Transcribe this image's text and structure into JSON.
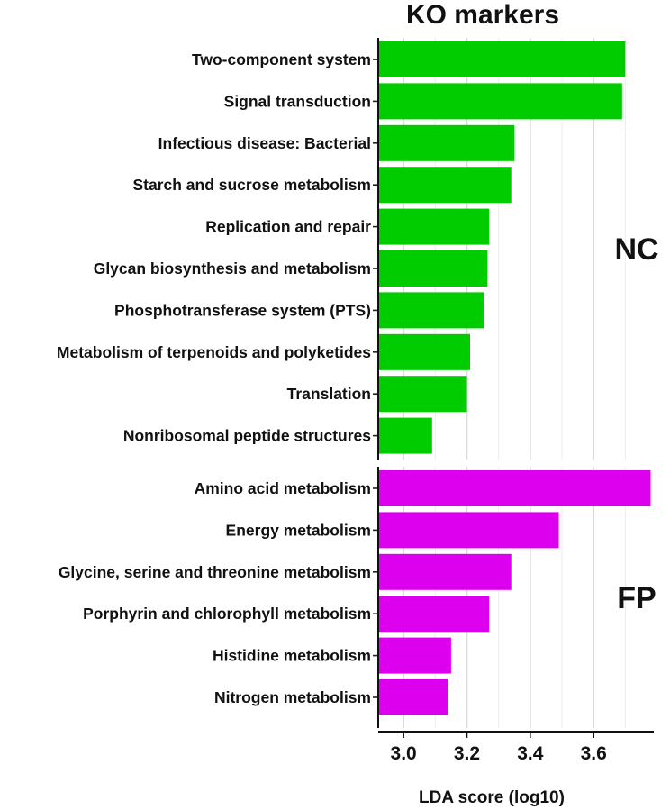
{
  "chart_data": {
    "type": "bar",
    "orientation": "horizontal",
    "title": "KO markers",
    "xlabel": "LDA score (log10)",
    "xlim": [
      2.92,
      3.79
    ],
    "x_ticks": [
      "3.0",
      "3.2",
      "3.4",
      "3.6"
    ],
    "x_tick_values": [
      3.0,
      3.2,
      3.4,
      3.6
    ],
    "grid": true,
    "groups": [
      {
        "name": "NC",
        "color": "#00cc00",
        "categories": [
          "Two-component system",
          "Signal transduction",
          "Infectious disease: Bacterial",
          "Starch and sucrose metabolism",
          "Replication and repair",
          "Glycan biosynthesis and metabolism",
          "Phosphotransferase system (PTS)",
          "Metabolism of terpenoids and polyketides",
          "Translation",
          "Nonribosomal peptide structures"
        ],
        "values": [
          3.7,
          3.69,
          3.35,
          3.34,
          3.27,
          3.265,
          3.255,
          3.21,
          3.2,
          3.09
        ]
      },
      {
        "name": "FP",
        "color": "#dd00ee",
        "categories": [
          "Amino acid metabolism",
          "Energy metabolism",
          "Glycine, serine and threonine metabolism",
          "Porphyrin and chlorophyll metabolism",
          "Histidine metabolism",
          "Nitrogen metabolism"
        ],
        "values": [
          3.78,
          3.49,
          3.34,
          3.27,
          3.15,
          3.14
        ]
      }
    ]
  }
}
